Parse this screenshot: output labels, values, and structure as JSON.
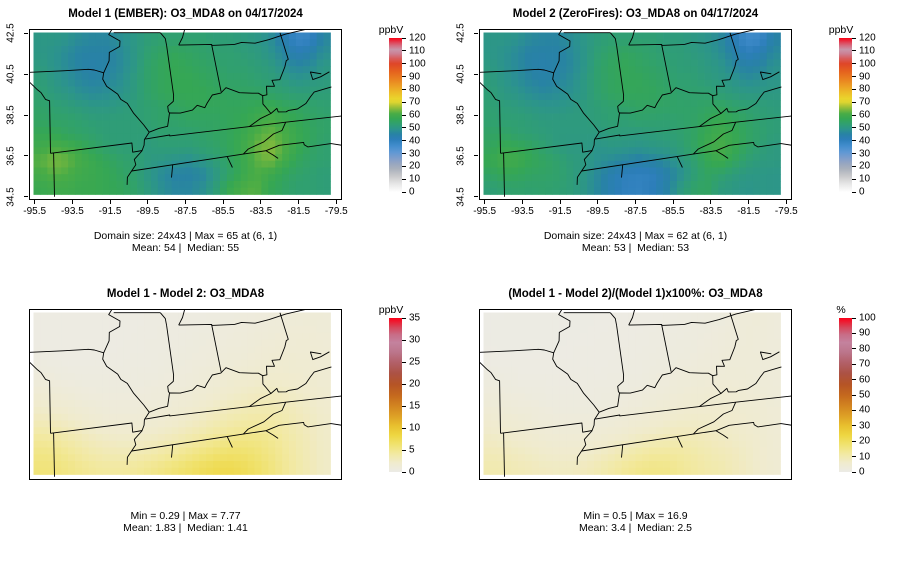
{
  "figure": {
    "background": "#ffffff"
  },
  "colors": {
    "conc_low": "#ffffff",
    "conc_blue": "#2c7ebd",
    "conc_green": "#35a754",
    "conc_yellow": "#ded530",
    "conc_red": "#fa0014",
    "diff_low": "#ecebe6",
    "diff_yellow": "#eed641",
    "diff_orange": "#c46a1e",
    "diff_pink": "#c482a0",
    "diff_red": "#fc0018"
  },
  "chart_data": [
    {
      "type": "heatmap",
      "panel": "top-left",
      "title": "Model 1 (EMBER): O3_MDA8 on 04/17/2024",
      "field": "model1",
      "palette": "conc",
      "show_axes": true,
      "x_ticks": [
        -95.5,
        -93.5,
        -91.5,
        -89.5,
        -87.5,
        -85.5,
        -83.5,
        -81.5,
        -79.5
      ],
      "y_ticks": [
        34.5,
        36.5,
        38.5,
        40.5,
        42.5
      ],
      "colorbar": {
        "label": "ppbV",
        "min": 0,
        "max": 120,
        "ticks": [
          0,
          10,
          20,
          30,
          40,
          50,
          60,
          70,
          80,
          90,
          100,
          110,
          120
        ]
      },
      "stats_line1": "Domain size: 24x43 | Max = 65 at (6, 1)",
      "stats_line2": "Mean: 54 |  Median: 55"
    },
    {
      "type": "heatmap",
      "panel": "top-right",
      "title": "Model 2 (ZeroFires): O3_MDA8 on 04/17/2024",
      "field": "model2",
      "palette": "conc",
      "show_axes": true,
      "x_ticks": [
        -95.5,
        -93.5,
        -91.5,
        -89.5,
        -87.5,
        -85.5,
        -83.5,
        -81.5,
        -79.5
      ],
      "y_ticks": [
        34.5,
        36.5,
        38.5,
        40.5,
        42.5
      ],
      "colorbar": {
        "label": "ppbV",
        "min": 0,
        "max": 120,
        "ticks": [
          0,
          10,
          20,
          30,
          40,
          50,
          60,
          70,
          80,
          90,
          100,
          110,
          120
        ]
      },
      "stats_line1": "Domain size: 24x43 | Max = 62 at (6, 1)",
      "stats_line2": "Mean: 53 |  Median: 53"
    },
    {
      "type": "heatmap",
      "panel": "bottom-left",
      "title": "Model 1 - Model 2: O3_MDA8",
      "field": "diff",
      "palette": "diff",
      "show_axes": false,
      "x_ticks": [],
      "y_ticks": [],
      "colorbar": {
        "label": "ppbV",
        "min": 0,
        "max": 35,
        "ticks": [
          0,
          5,
          10,
          15,
          20,
          25,
          30,
          35
        ]
      },
      "stats_line1": "Min = 0.29 | Max = 7.77",
      "stats_line2": "Mean: 1.83 |  Median: 1.41"
    },
    {
      "type": "heatmap",
      "panel": "bottom-right",
      "title": "(Model 1 - Model 2)/(Model 1)x100%: O3_MDA8",
      "field": "pct",
      "palette": "diff",
      "show_axes": false,
      "x_ticks": [],
      "y_ticks": [],
      "colorbar": {
        "label": "%",
        "min": 0,
        "max": 100,
        "ticks": [
          0,
          10,
          20,
          30,
          40,
          50,
          60,
          70,
          80,
          90,
          100
        ]
      },
      "stats_line1": "Min = 0.5 | Max = 16.9",
      "stats_line2": "Mean: 3.4 |  Median: 2.5"
    }
  ],
  "fields": {
    "lon_range": [
      -95.8,
      -79.2
    ],
    "lat_range": [
      34.35,
      42.7
    ],
    "model1_ppbv": [
      [
        50,
        50,
        49,
        47,
        46,
        46,
        48,
        50,
        52,
        53,
        53,
        53,
        53,
        52,
        52,
        51,
        50,
        48,
        43,
        38,
        39,
        46
      ],
      [
        50,
        49,
        47,
        45,
        45,
        45,
        47,
        50,
        53,
        55,
        56,
        55,
        54,
        53,
        53,
        52,
        51,
        49,
        46,
        42,
        44,
        48
      ],
      [
        51,
        49,
        47,
        45,
        44,
        45,
        47,
        50,
        54,
        56,
        57,
        56,
        55,
        54,
        53,
        53,
        52,
        51,
        48,
        46,
        47,
        50
      ],
      [
        52,
        50,
        48,
        46,
        45,
        46,
        48,
        51,
        54,
        56,
        57,
        57,
        56,
        55,
        54,
        54,
        53,
        52,
        51,
        49,
        50,
        51
      ],
      [
        53,
        51,
        50,
        48,
        47,
        48,
        49,
        51,
        54,
        56,
        57,
        57,
        57,
        56,
        55,
        55,
        55,
        54,
        53,
        52,
        52,
        52
      ],
      [
        54,
        53,
        52,
        51,
        50,
        50,
        51,
        52,
        53,
        54,
        55,
        56,
        56,
        56,
        56,
        56,
        57,
        58,
        56,
        55,
        54,
        53
      ],
      [
        55,
        54,
        54,
        53,
        52,
        52,
        52,
        52,
        53,
        54,
        54,
        55,
        55,
        55,
        56,
        57,
        59,
        61,
        59,
        57,
        55,
        54
      ],
      [
        57,
        57,
        55,
        54,
        53,
        52,
        52,
        52,
        52,
        53,
        53,
        53,
        54,
        55,
        56,
        58,
        61,
        63,
        61,
        58,
        56,
        54
      ],
      [
        59,
        61,
        60,
        58,
        55,
        53,
        52,
        52,
        51,
        52,
        52,
        52,
        53,
        54,
        56,
        59,
        63,
        65,
        62,
        58,
        55,
        53
      ],
      [
        62,
        64,
        63,
        60,
        58,
        56,
        54,
        53,
        51,
        50,
        49,
        48,
        50,
        52,
        55,
        58,
        62,
        64,
        60,
        56,
        54,
        53
      ],
      [
        60,
        62,
        61,
        59,
        58,
        57,
        55,
        53,
        50,
        47,
        45,
        45,
        46,
        50,
        54,
        58,
        61,
        59,
        56,
        54,
        53,
        52
      ],
      [
        58,
        59,
        59,
        58,
        58,
        57,
        56,
        54,
        51,
        48,
        46,
        46,
        48,
        52,
        58,
        61,
        62,
        57,
        55,
        53,
        53,
        52
      ]
    ],
    "model1_minus_model2_ppbv": [
      [
        0.3,
        0.3,
        0.3,
        0.3,
        0.3,
        0.3,
        0.3,
        0.3,
        0.4,
        0.4,
        0.4,
        0.5,
        0.5,
        0.6,
        0.7,
        0.8,
        0.9,
        1.0,
        1.1,
        1.2,
        1.3,
        1.2
      ],
      [
        0.3,
        0.3,
        0.3,
        0.3,
        0.3,
        0.3,
        0.3,
        0.4,
        0.4,
        0.5,
        0.5,
        0.6,
        0.7,
        0.8,
        0.9,
        1.0,
        1.1,
        1.2,
        1.3,
        1.4,
        1.4,
        1.3
      ],
      [
        0.4,
        0.3,
        0.3,
        0.3,
        0.3,
        0.3,
        0.4,
        0.4,
        0.5,
        0.5,
        0.6,
        0.7,
        0.8,
        0.9,
        1.0,
        1.1,
        1.3,
        1.4,
        1.5,
        1.5,
        1.5,
        1.4
      ],
      [
        0.5,
        0.4,
        0.4,
        0.4,
        0.4,
        0.4,
        0.4,
        0.5,
        0.5,
        0.6,
        0.7,
        0.8,
        0.9,
        1.0,
        1.2,
        1.3,
        1.5,
        1.6,
        1.7,
        1.7,
        1.6,
        1.5
      ],
      [
        0.8,
        0.7,
        0.6,
        0.5,
        0.5,
        0.5,
        0.5,
        0.6,
        0.6,
        0.7,
        0.8,
        0.9,
        1.1,
        1.3,
        1.5,
        1.7,
        1.8,
        1.9,
        1.9,
        1.8,
        1.7,
        1.6
      ],
      [
        1.2,
        1.1,
        0.9,
        0.8,
        0.7,
        0.7,
        0.7,
        0.7,
        0.8,
        0.9,
        1.0,
        1.2,
        1.4,
        1.6,
        1.9,
        2.1,
        2.3,
        2.4,
        2.3,
        2.1,
        1.9,
        1.7
      ],
      [
        1.8,
        1.6,
        1.4,
        1.2,
        1.0,
        0.9,
        0.9,
        0.9,
        1.0,
        1.1,
        1.3,
        1.5,
        1.8,
        2.1,
        2.4,
        2.7,
        2.9,
        3.0,
        2.8,
        2.5,
        2.2,
        1.9
      ],
      [
        2.5,
        2.3,
        2.0,
        1.7,
        1.4,
        1.2,
        1.2,
        1.2,
        1.3,
        1.5,
        1.7,
        2.0,
        2.3,
        2.7,
        3.1,
        3.4,
        3.6,
        3.6,
        3.3,
        2.9,
        2.5,
        2.1
      ],
      [
        3.4,
        3.2,
        2.8,
        2.4,
        2.0,
        1.8,
        1.7,
        1.7,
        1.8,
        2.0,
        2.3,
        2.7,
        3.1,
        3.6,
        4.0,
        4.3,
        4.4,
        4.2,
        3.8,
        3.2,
        2.7,
        2.2
      ],
      [
        4.5,
        4.3,
        3.8,
        3.3,
        2.8,
        2.5,
        2.4,
        2.4,
        2.6,
        2.9,
        3.3,
        3.8,
        4.3,
        4.8,
        5.2,
        5.4,
        5.3,
        4.9,
        4.2,
        3.5,
        2.9,
        2.3
      ],
      [
        5.3,
        5.2,
        4.7,
        4.1,
        3.6,
        3.3,
        3.2,
        3.3,
        3.6,
        4.0,
        4.5,
        5.1,
        5.7,
        6.2,
        6.5,
        6.4,
        6.0,
        5.3,
        4.5,
        3.7,
        3.0,
        2.4
      ],
      [
        5.8,
        5.7,
        5.3,
        4.8,
        4.4,
        4.2,
        4.2,
        4.4,
        4.8,
        5.3,
        5.9,
        6.5,
        7.1,
        7.6,
        7.7,
        7.3,
        6.6,
        5.7,
        4.7,
        3.8,
        3.1,
        2.4
      ]
    ]
  }
}
